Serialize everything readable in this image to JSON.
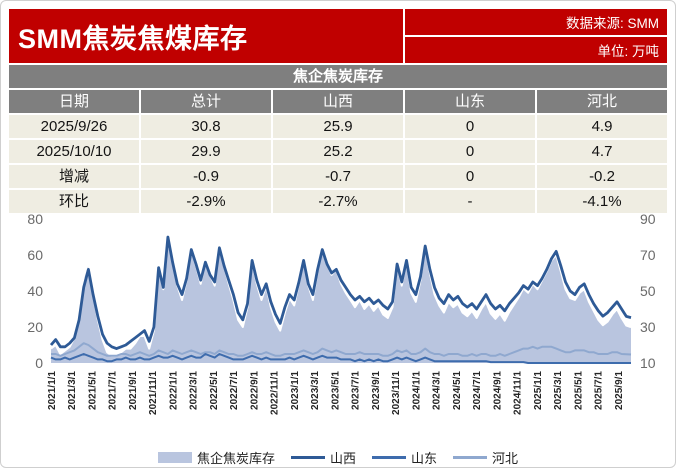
{
  "header": {
    "title": "SMM焦炭焦煤库存",
    "source_label": "数据来源: SMM",
    "unit_label": "单位: 万吨"
  },
  "table": {
    "title": "焦企焦炭库存",
    "columns": [
      "日期",
      "总计",
      "山西",
      "山东",
      "河北"
    ],
    "rows": [
      [
        "2025/9/26",
        "30.8",
        "25.9",
        "0",
        "4.9"
      ],
      [
        "2025/10/10",
        "29.9",
        "25.2",
        "0",
        "4.7"
      ],
      [
        "增减",
        "-0.9",
        "-0.7",
        "0",
        "-0.2"
      ],
      [
        "环比",
        "-2.9%",
        "-2.7%",
        "-",
        "-4.1%"
      ]
    ]
  },
  "colors": {
    "banner_red": "#C00000",
    "table_gray": "#7F7F7F",
    "row_beige": "#EFEDE2",
    "area_fill": "#B9C5DF",
    "shanxi_line": "#2E5A96",
    "shandong_line": "#3E6CAD",
    "hebei_line": "#8FA8CF"
  },
  "chart_data": {
    "type": "area",
    "title": "",
    "grid": false,
    "legend_position": "bottom",
    "x_total_months": 57.3,
    "x_labels": [
      "2021/1/1",
      "2021/3/1",
      "2021/5/1",
      "2021/7/1",
      "2021/9/1",
      "2021/11/1",
      "2022/1/1",
      "2022/3/1",
      "2022/5/1",
      "2022/7/1",
      "2022/9/1",
      "2022/11/1",
      "2023/1/1",
      "2023/3/1",
      "2023/5/1",
      "2023/7/1",
      "2023/9/1",
      "2023/11/1",
      "2024/1/1",
      "2024/3/1",
      "2024/5/1",
      "2024/7/1",
      "2024/9/1",
      "2024/11/1",
      "2025/1/1",
      "2025/3/1",
      "2025/5/1",
      "2025/7/1",
      "2025/9/1"
    ],
    "left_axis": {
      "min": 0,
      "max": 80,
      "ticks": [
        0,
        20,
        40,
        60,
        80
      ]
    },
    "right_axis": {
      "min": 10,
      "max": 90,
      "ticks": [
        10,
        30,
        50,
        70,
        90
      ]
    },
    "note": "area series 焦企焦炭库存 (总计) is the element-wise sum of 山西+山东+河北 and is plotted on the right axis; province lines on the left axis; values are biweekly estimates 2021/1/1 - 2025/10/10",
    "series": [
      {
        "name": "焦企焦炭库存",
        "type": "area",
        "axis": "right",
        "color": "#B9C5DF",
        "sum_of": [
          "山西",
          "山东",
          "河北"
        ]
      },
      {
        "name": "山西",
        "type": "line",
        "axis": "left",
        "color": "#2E5A96",
        "values": [
          10,
          13,
          9,
          9,
          11,
          14,
          24,
          42,
          52,
          38,
          26,
          16,
          11,
          9,
          8,
          9,
          10,
          12,
          14,
          16,
          18,
          12,
          20,
          53,
          42,
          70,
          56,
          44,
          38,
          47,
          63,
          55,
          46,
          56,
          49,
          45,
          64,
          54,
          46,
          38,
          28,
          24,
          33,
          57,
          46,
          38,
          44,
          34,
          27,
          22,
          31,
          38,
          35,
          45,
          57,
          44,
          38,
          52,
          63,
          55,
          50,
          52,
          46,
          42,
          38,
          35,
          37,
          34,
          36,
          33,
          35,
          32,
          30,
          34,
          55,
          45,
          57,
          42,
          38,
          48,
          65,
          52,
          42,
          36,
          33,
          38,
          35,
          37,
          33,
          31,
          33,
          30,
          34,
          38,
          33,
          30,
          32,
          29,
          33,
          36,
          39,
          43,
          41,
          45,
          43,
          47,
          52,
          58,
          62,
          54,
          45,
          40,
          38,
          42,
          44,
          38,
          33,
          29,
          26,
          28,
          31,
          34,
          30,
          25.9,
          25.2
        ]
      },
      {
        "name": "山东",
        "type": "line",
        "axis": "left",
        "color": "#3E6CAD",
        "values": [
          3,
          2,
          2,
          3,
          2,
          3,
          4,
          5,
          4,
          3,
          2,
          2,
          1,
          1,
          2,
          2,
          3,
          2,
          2,
          3,
          2,
          2,
          3,
          4,
          3,
          3,
          4,
          3,
          2,
          3,
          4,
          3,
          3,
          5,
          4,
          3,
          5,
          4,
          3,
          2,
          2,
          2,
          3,
          4,
          3,
          2,
          3,
          2,
          2,
          2,
          2,
          3,
          2,
          3,
          4,
          3,
          2,
          3,
          4,
          3,
          3,
          3,
          2,
          2,
          2,
          1,
          2,
          1,
          2,
          1,
          2,
          1,
          1,
          2,
          3,
          2,
          3,
          2,
          1,
          2,
          3,
          2,
          1,
          1,
          1,
          1,
          1,
          1,
          1,
          1,
          1,
          1,
          1,
          1,
          0.5,
          0.5,
          0.5,
          0.5,
          0.5,
          0.5,
          0.5,
          0.5,
          0,
          0,
          0,
          0,
          0,
          0,
          0,
          0,
          0,
          0,
          0,
          0,
          0,
          0,
          0,
          0,
          0,
          0,
          0,
          0,
          0,
          0,
          0
        ]
      },
      {
        "name": "河北",
        "type": "line",
        "axis": "left",
        "color": "#8FA8CF",
        "values": [
          5,
          5,
          4,
          5,
          6,
          7,
          9,
          11,
          10,
          8,
          6,
          5,
          4,
          4,
          4,
          5,
          5,
          4,
          5,
          6,
          5,
          4,
          5,
          7,
          6,
          5,
          7,
          6,
          5,
          6,
          7,
          6,
          5,
          6,
          6,
          5,
          7,
          6,
          5,
          5,
          4,
          4,
          5,
          6,
          5,
          5,
          6,
          5,
          4,
          4,
          5,
          5,
          5,
          6,
          7,
          6,
          5,
          6,
          8,
          7,
          6,
          7,
          6,
          5,
          5,
          5,
          6,
          5,
          5,
          5,
          5,
          4,
          4,
          5,
          7,
          6,
          7,
          5,
          5,
          6,
          8,
          6,
          5,
          5,
          4,
          5,
          5,
          5,
          4,
          4,
          5,
          4,
          5,
          5,
          4,
          4,
          5,
          4,
          5,
          6,
          7,
          8,
          8,
          9,
          8,
          9,
          9,
          9,
          8,
          7,
          6,
          6,
          7,
          7,
          7,
          6,
          6,
          5,
          5,
          5,
          6,
          6,
          5,
          4.9,
          4.7
        ]
      }
    ]
  }
}
